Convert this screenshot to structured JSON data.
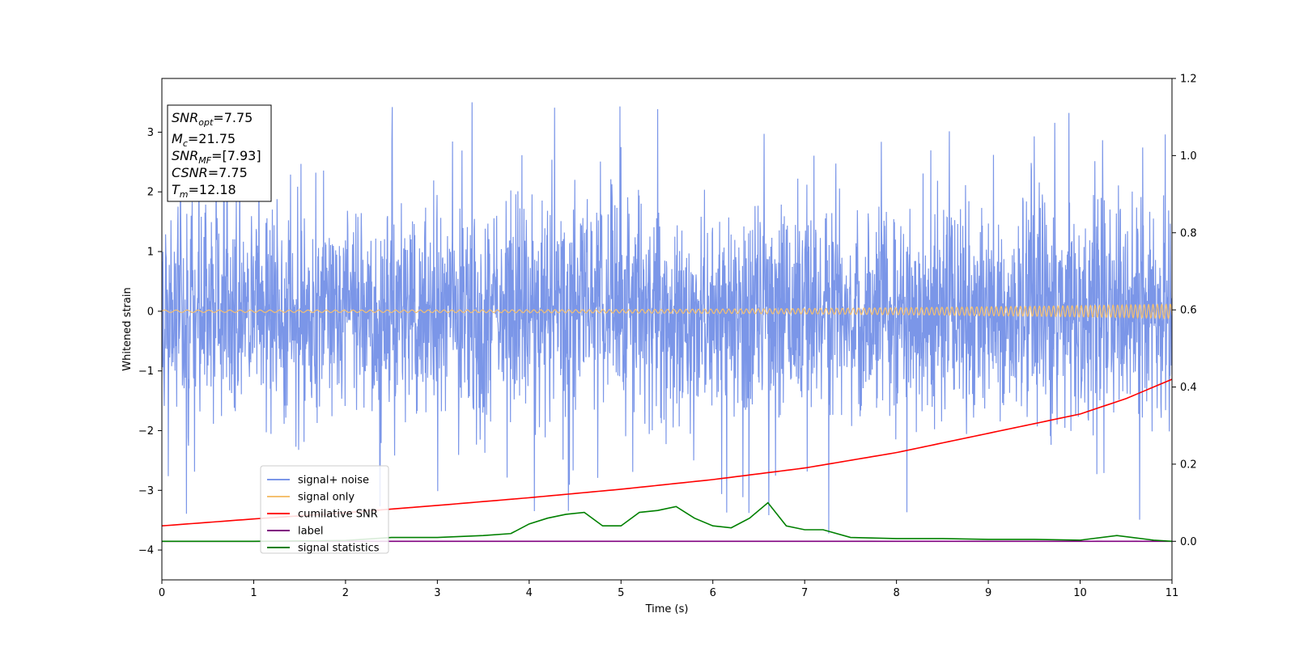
{
  "chart_data": {
    "type": "line",
    "title": "",
    "xlabel": "Time (s)",
    "ylabel": "Whitened strain",
    "xlim": [
      0,
      11
    ],
    "ylim": [
      -4.5,
      3.9
    ],
    "y2lim": [
      -0.1,
      1.2
    ],
    "xticks": [
      "0",
      "1",
      "2",
      "3",
      "4",
      "5",
      "6",
      "7",
      "8",
      "9",
      "10",
      "11"
    ],
    "yticks": [
      "−4",
      "−3",
      "−2",
      "−1",
      "0",
      "1",
      "2",
      "3"
    ],
    "y2ticks": [
      "0.0",
      "0.2",
      "0.4",
      "0.6",
      "0.8",
      "1.0",
      "1.2"
    ],
    "grid": false,
    "legend_position": "lower-left",
    "annotation": {
      "snr_opt": {
        "base": "SNR",
        "sub": "opt",
        "value": "=7.75"
      },
      "mc": {
        "base": "M",
        "sub": "c",
        "value": "=21.75"
      },
      "snr_mf": {
        "base": "SNR",
        "sub": "MF",
        "value": "=[7.93]"
      },
      "csnr": {
        "base": "CSNR",
        "value": "=7.75"
      },
      "tm": {
        "base": "T",
        "sub": "m",
        "value": "=12.18"
      }
    },
    "series": [
      {
        "name": "signal+ noise",
        "color": "#7b96e8",
        "axis": "left",
        "noise_std": 0.9,
        "range": [
          -4.2,
          3.5
        ],
        "samples": 3000
      },
      {
        "name": "signal only",
        "color": "#f5c070",
        "axis": "left",
        "amplitude_start": 0.02,
        "amplitude_end": 0.12
      },
      {
        "name": "cumilative SNR",
        "color": "#ff0000",
        "axis": "right",
        "x": [
          0,
          1,
          2,
          3,
          4,
          5,
          6,
          7,
          8,
          9,
          10,
          10.5,
          11
        ],
        "y": [
          0.04,
          0.058,
          0.074,
          0.093,
          0.113,
          0.135,
          0.16,
          0.19,
          0.23,
          0.28,
          0.33,
          0.37,
          0.42
        ]
      },
      {
        "name": "label",
        "color": "#800080",
        "axis": "right",
        "x": [
          0,
          11
        ],
        "y": [
          0.0,
          0.0
        ]
      },
      {
        "name": "signal statistics",
        "color": "#008000",
        "axis": "right",
        "x": [
          0,
          1,
          2,
          2.5,
          3,
          3.5,
          3.8,
          4.0,
          4.2,
          4.4,
          4.6,
          4.8,
          5.0,
          5.2,
          5.4,
          5.6,
          5.8,
          6.0,
          6.2,
          6.4,
          6.6,
          6.8,
          7.0,
          7.2,
          7.5,
          8.0,
          8.5,
          9.0,
          9.5,
          10.0,
          10.4,
          10.8,
          11
        ],
        "y": [
          0.0,
          0.0,
          0.002,
          0.01,
          0.01,
          0.015,
          0.02,
          0.045,
          0.06,
          0.07,
          0.075,
          0.04,
          0.04,
          0.075,
          0.08,
          0.09,
          0.06,
          0.04,
          0.035,
          0.06,
          0.1,
          0.04,
          0.03,
          0.03,
          0.01,
          0.007,
          0.007,
          0.005,
          0.005,
          0.003,
          0.015,
          0.003,
          0.0
        ]
      }
    ]
  }
}
